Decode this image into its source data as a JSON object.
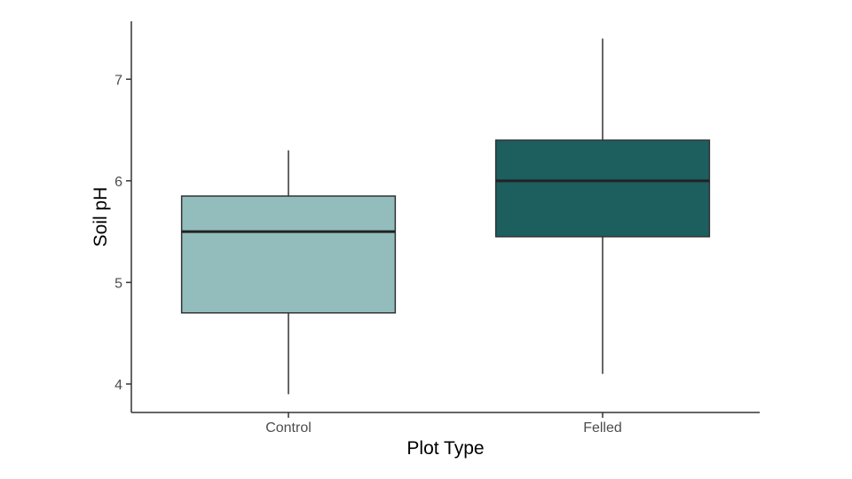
{
  "chart_data": {
    "type": "box",
    "title": "",
    "xlabel": "Plot Type",
    "ylabel": "Soil pH",
    "categories": [
      "Control",
      "Felled"
    ],
    "boxes": [
      {
        "category": "Control",
        "min": 3.9,
        "q1": 4.7,
        "median": 5.5,
        "q3": 5.85,
        "max": 6.3,
        "color": "#93bdbd"
      },
      {
        "category": "Felled",
        "min": 4.1,
        "q1": 5.45,
        "median": 6.0,
        "q3": 6.4,
        "max": 7.4,
        "color": "#1d5e5f"
      }
    ],
    "yticks": [
      4,
      5,
      6,
      7
    ],
    "ylim": [
      3.72,
      7.57
    ],
    "grid": false,
    "legend": "none"
  }
}
